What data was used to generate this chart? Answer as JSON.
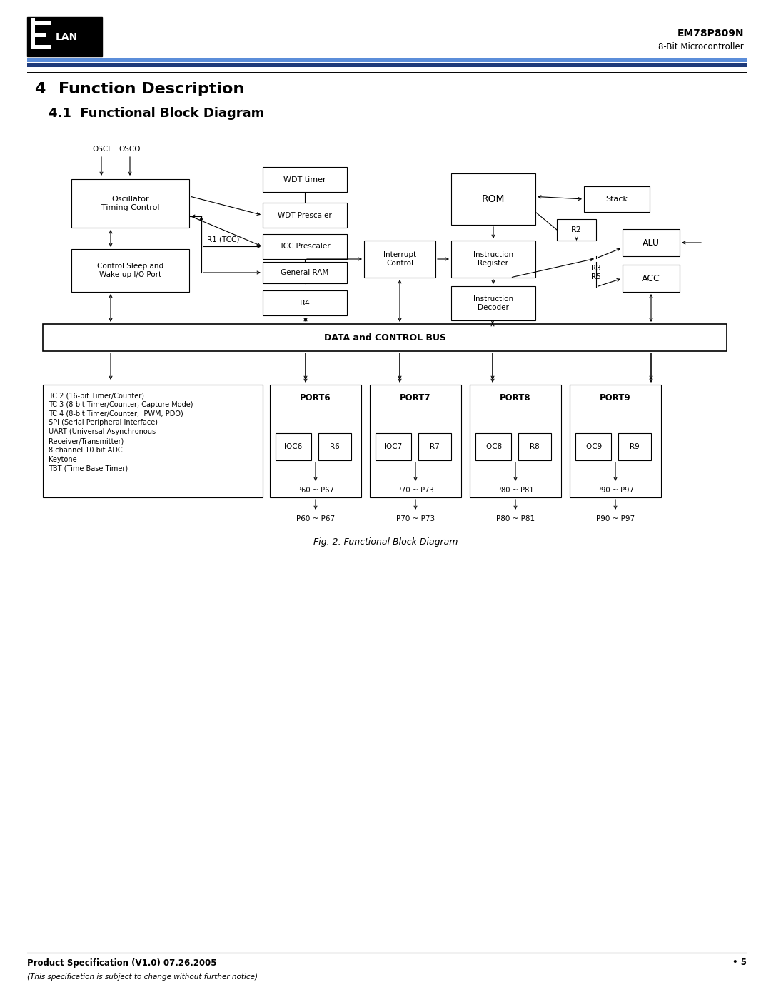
{
  "page_title": "EM78P809N",
  "page_subtitle": "8-Bit Microcontroller",
  "section_title": "4",
  "section_text": "Function Description",
  "subsection_title": "4.1  Functional Block Diagram",
  "fig_caption": "Fig. 2. Functional Block Diagram",
  "footer_left": "Product Specification (V1.0) 07.26.2005",
  "footer_right": "• 5",
  "footer_italic": "(This specification is subject to change without further notice)",
  "bg_color": "#ffffff",
  "text_color": "#000000",
  "header_blue_light": "#4a7fd4",
  "header_blue_dark": "#1a3a8a"
}
